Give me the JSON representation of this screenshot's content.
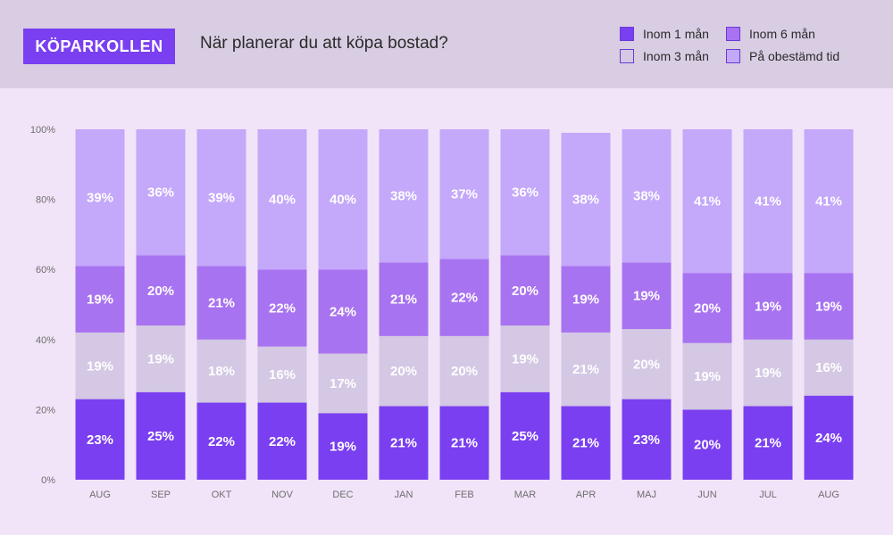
{
  "header": {
    "brand": "KÖPARKOLLEN",
    "title": "När planerar du att köpa bostad?"
  },
  "colors": {
    "inom1": "#7a3ff0",
    "inom3": "#d4c8e4",
    "inom6": "#a873f0",
    "obestamd": "#c4a8fa"
  },
  "legend": [
    {
      "label": "Inom 1 mån",
      "color": "#7a3ff0"
    },
    {
      "label": "Inom 6 mån",
      "color": "#a873f0"
    },
    {
      "label": "Inom 3 mån",
      "color": "#d4c8e4"
    },
    {
      "label": "På obestämd tid",
      "color": "#c4a8fa"
    }
  ],
  "chart_data": {
    "type": "bar",
    "stacked": true,
    "categories": [
      "AUG",
      "SEP",
      "OKT",
      "NOV",
      "DEC",
      "JAN",
      "FEB",
      "MAR",
      "APR",
      "MAJ",
      "JUN",
      "JUL",
      "AUG"
    ],
    "y_ticks": [
      "0%",
      "20%",
      "40%",
      "60%",
      "80%",
      "100%"
    ],
    "ylim": [
      0,
      100
    ],
    "series": [
      {
        "name": "Inom 1 mån",
        "color": "#7a3ff0",
        "values": [
          23,
          25,
          22,
          22,
          19,
          21,
          21,
          25,
          21,
          23,
          20,
          21,
          24
        ]
      },
      {
        "name": "Inom 3 mån",
        "color": "#d4c8e4",
        "values": [
          19,
          19,
          18,
          16,
          17,
          20,
          20,
          19,
          21,
          20,
          19,
          19,
          16
        ]
      },
      {
        "name": "Inom 6 mån",
        "color": "#a873f0",
        "values": [
          19,
          20,
          21,
          22,
          24,
          21,
          22,
          20,
          19,
          19,
          20,
          19,
          19
        ]
      },
      {
        "name": "På obestämd tid",
        "color": "#c4a8fa",
        "values": [
          39,
          36,
          39,
          40,
          40,
          38,
          37,
          36,
          38,
          38,
          41,
          41,
          41
        ]
      }
    ]
  }
}
